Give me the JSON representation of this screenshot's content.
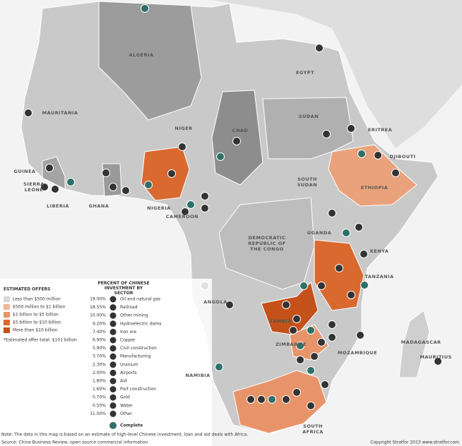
{
  "map": {
    "countries": [
      "ALGERIA",
      "EGYPT",
      "MAURITANIA",
      "NIGER",
      "CHAD",
      "SUDAN",
      "ERITREA",
      "DJIBOUTI",
      "GUINEA",
      "SIERRA LEONE",
      "LIBERIA",
      "GHANA",
      "NIGERIA",
      "CAMEROON",
      "SOUTH SUDAN",
      "ETHIOPIA",
      "UGANDA",
      "DEMOCRATIC REPUBLIC OF THE CONGO",
      "KENYA",
      "TANZANIA",
      "ANGOLA",
      "ZAMBIA",
      "ZIMBABWE",
      "MOZAMBIQUE",
      "MADAGASCAR",
      "MAURITIUS",
      "NAMIBIA",
      "SOUTH AFRICA"
    ]
  },
  "legend": {
    "offers_title": "ESTIMATED OFFERS",
    "offers": [
      "Less than $500 million",
      "$500 million to $1 billion",
      "$1 billion to $5 billion",
      "$5 billion to $10 billion",
      "More than $10 billion"
    ],
    "offer_total": "*Estimated offer total: $101 billion",
    "sectors_title": "PERCENT OF CHINESE INVESTMENT BY SECTOR",
    "sectors": [
      {
        "percent": "19.00%",
        "label": "Oil and natural gas"
      },
      {
        "percent": "18.55%",
        "label": "Railroad"
      },
      {
        "percent": "10.00%",
        "label": "Other mining"
      },
      {
        "percent": "9.20%",
        "label": "Hydroelectric dams"
      },
      {
        "percent": "7.40%",
        "label": "Iron ore"
      },
      {
        "percent": "6.90%",
        "label": "Copper"
      },
      {
        "percent": "5.90%",
        "label": "Civil construction"
      },
      {
        "percent": "3.70%",
        "label": "Manufacturing"
      },
      {
        "percent": "2.30%",
        "label": "Uranium"
      },
      {
        "percent": "2.00%",
        "label": "Airports"
      },
      {
        "percent": "1.80%",
        "label": "Aid"
      },
      {
        "percent": "1.60%",
        "label": "Port construction"
      },
      {
        "percent": "0.70%",
        "label": "Gold"
      },
      {
        "percent": "0.50%",
        "label": "Water"
      },
      {
        "percent": "11.00%",
        "label": "Other"
      }
    ],
    "complete": "Complete"
  },
  "note": "Note: The data in this map is based on an estimate of high-level Chinese investment, loan and aid deals with Africa.",
  "source": "Source: China Business Review, open source commercial information",
  "copyright": "Copyright Stratfor 2013   www.stratfor.com"
}
